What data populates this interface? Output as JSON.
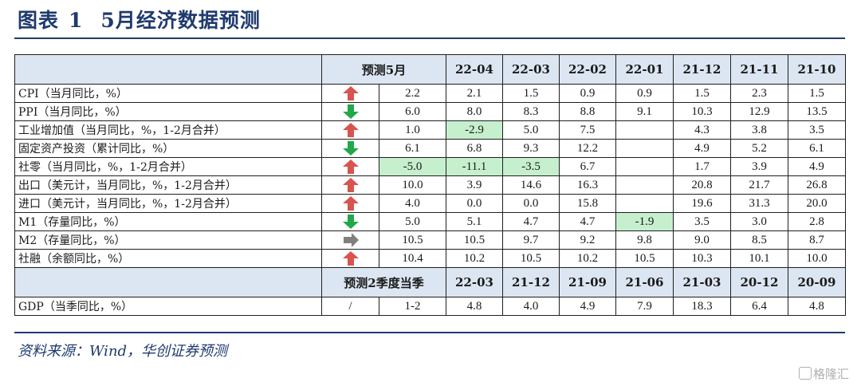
{
  "title": {
    "label": "图表",
    "number": "1",
    "text": "5月经济数据预测"
  },
  "table": {
    "header1": [
      "预测5月",
      "22-04",
      "22-03",
      "22-02",
      "22-01",
      "21-12",
      "21-11",
      "21-10"
    ],
    "rows": [
      {
        "label": "CPI（当月同比，%）",
        "arrow": "up",
        "forecast": "2.2",
        "values": [
          "2.1",
          "1.5",
          "0.9",
          "0.9",
          "1.5",
          "2.3",
          "1.5"
        ],
        "highlight": []
      },
      {
        "label": "PPI（当月同比，%）",
        "arrow": "down",
        "forecast": "6.0",
        "values": [
          "8.0",
          "8.3",
          "8.8",
          "9.1",
          "10.3",
          "12.9",
          "13.5"
        ],
        "highlight": []
      },
      {
        "label": "工业增加值（当月同比，%，1-2月合并）",
        "arrow": "up",
        "forecast": "1.0",
        "values": [
          "-2.9",
          "5.0",
          "7.5",
          "",
          "4.3",
          "3.8",
          "3.5"
        ],
        "highlight": [
          0
        ]
      },
      {
        "label": "固定资产投资（累计同比，%）",
        "arrow": "down",
        "forecast": "6.1",
        "values": [
          "6.8",
          "9.3",
          "12.2",
          "",
          "4.9",
          "5.2",
          "6.1"
        ],
        "highlight": []
      },
      {
        "label": "社零（当月同比，%，1-2月合并）",
        "arrow": "up",
        "forecast": "-5.0",
        "values": [
          "-11.1",
          "-3.5",
          "6.7",
          "",
          "1.7",
          "3.9",
          "4.9"
        ],
        "highlight": [
          "f",
          0,
          1
        ]
      },
      {
        "label": "出口（美元计，当月同比，%，1-2月合并）",
        "arrow": "up",
        "forecast": "10.0",
        "values": [
          "3.9",
          "14.6",
          "16.3",
          "",
          "20.8",
          "21.7",
          "26.8"
        ],
        "highlight": []
      },
      {
        "label": "进口（美元计，当月同比，%，1-2月合并）",
        "arrow": "up",
        "forecast": "4.0",
        "values": [
          "0.0",
          "0.0",
          "15.8",
          "",
          "19.6",
          "31.3",
          "20.0"
        ],
        "highlight": []
      },
      {
        "label": "M1（存量同比，%）",
        "arrow": "down",
        "forecast": "5.0",
        "values": [
          "5.1",
          "4.7",
          "4.7",
          "-1.9",
          "3.5",
          "3.0",
          "2.8"
        ],
        "highlight": [
          3
        ]
      },
      {
        "label": "M2（存量同比，%）",
        "arrow": "right",
        "forecast": "10.5",
        "values": [
          "10.5",
          "9.7",
          "9.2",
          "9.8",
          "9.0",
          "8.5",
          "8.7"
        ],
        "highlight": []
      },
      {
        "label": "社融（余额同比，%）",
        "arrow": "up",
        "forecast": "10.4",
        "values": [
          "10.2",
          "10.5",
          "10.2",
          "10.5",
          "10.3",
          "10.1",
          "10.0"
        ],
        "highlight": []
      }
    ],
    "header2": [
      "预测2季度当季",
      "22-03",
      "21-12",
      "21-09",
      "21-06",
      "21-03",
      "20-12",
      "20-09"
    ],
    "gdp": {
      "label": "GDP（当季同比，%）",
      "arrow": "/",
      "forecast": "1-2",
      "values": [
        "4.8",
        "4.0",
        "4.9",
        "7.9",
        "18.3",
        "6.4",
        "4.8"
      ]
    }
  },
  "source": "资料来源：Wind，华创证券预测",
  "watermark": "格隆汇",
  "colors": {
    "up": "#d9534f",
    "down": "#22a84a",
    "flat": "#808080",
    "highlight": "#c6efce",
    "header_bg": "#dce6f2",
    "title": "#1f3a6e"
  }
}
